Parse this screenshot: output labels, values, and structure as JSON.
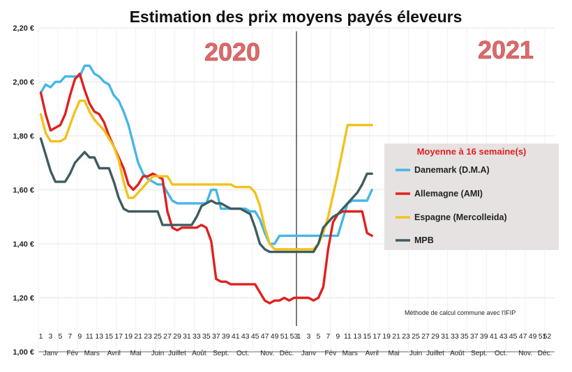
{
  "chart_data": {
    "type": "line",
    "title": "Estimation des prix moyens payés éleveurs",
    "year_labels": [
      "2020",
      "2021"
    ],
    "legend_title": "Moyenne à  16 semaine(s)",
    "note": "Méthode de calcul commune avec l'IFIP",
    "ylim": [
      1.0,
      2.2
    ],
    "yticks": [
      "1,00 €",
      "1,20 €",
      "1,40 €",
      "1,60 €",
      "1,80 €",
      "2,00 €",
      "2,20 €"
    ],
    "ytick_values": [
      1.0,
      1.2,
      1.4,
      1.6,
      1.8,
      2.0,
      2.2
    ],
    "week_ticks_2020": [
      "1",
      "3",
      "5",
      "7",
      "9",
      "11",
      "13",
      "15",
      "17",
      "19",
      "21",
      "23",
      "25",
      "27",
      "29",
      "31",
      "33",
      "35",
      "37",
      "39",
      "41",
      "43",
      "45",
      "47",
      "49",
      "51",
      "53"
    ],
    "week_ticks_2021": [
      "1",
      "3",
      "5",
      "7",
      "9",
      "11",
      "13",
      "15",
      "17",
      "19",
      "21",
      "23",
      "25",
      "27",
      "29",
      "31",
      "33",
      "35",
      "37",
      "39",
      "41",
      "43",
      "45",
      "47",
      "49",
      "51",
      "52"
    ],
    "months": [
      "Janv",
      "Fév",
      "Mars",
      "Avril",
      "Mai",
      "Juin",
      "Juillet",
      "Août",
      "Sept.",
      "Oct.",
      "Nov.",
      "Déc."
    ],
    "month_weeks": [
      3,
      7.5,
      11.5,
      16,
      20.5,
      25,
      29,
      33.5,
      38,
      42.5,
      47.5,
      51.5
    ],
    "x_total": 106,
    "divider_x": 53,
    "series": [
      {
        "name": "Danemark (D.M.A)",
        "color": "#45b6e6",
        "x": [
          1,
          2,
          3,
          4,
          5,
          6,
          7,
          8,
          9,
          10,
          11,
          12,
          13,
          14,
          15,
          16,
          17,
          18,
          19,
          20,
          21,
          22,
          23,
          24,
          25,
          26,
          27,
          28,
          29,
          30,
          31,
          32,
          33,
          34,
          35,
          36,
          37,
          38,
          39,
          40,
          41,
          42,
          43,
          44,
          45,
          46,
          47,
          48,
          49,
          50,
          51,
          52,
          53,
          54,
          55,
          56,
          57,
          58,
          59,
          60,
          61,
          62,
          63,
          64,
          65,
          66,
          67,
          68,
          69
        ],
        "values": [
          1.96,
          1.99,
          1.98,
          2.0,
          2.0,
          2.02,
          2.02,
          2.02,
          2.02,
          2.06,
          2.06,
          2.03,
          2.02,
          2.0,
          1.99,
          1.95,
          1.93,
          1.89,
          1.84,
          1.77,
          1.7,
          1.66,
          1.64,
          1.63,
          1.62,
          1.62,
          1.59,
          1.56,
          1.55,
          1.55,
          1.55,
          1.55,
          1.55,
          1.55,
          1.55,
          1.6,
          1.6,
          1.53,
          1.53,
          1.53,
          1.53,
          1.53,
          1.53,
          1.52,
          1.52,
          1.49,
          1.44,
          1.4,
          1.4,
          1.43,
          1.43,
          1.43,
          1.43,
          1.43,
          1.43,
          1.43,
          1.43,
          1.43,
          1.43,
          1.43,
          1.43,
          1.43,
          1.49,
          1.55,
          1.56,
          1.56,
          1.56,
          1.56,
          1.6
        ]
      },
      {
        "name": "Allemagne (AMI)",
        "color": "#e02020",
        "x": [
          1,
          2,
          3,
          4,
          5,
          6,
          7,
          8,
          9,
          10,
          11,
          12,
          13,
          14,
          15,
          16,
          17,
          18,
          19,
          20,
          21,
          22,
          23,
          24,
          25,
          26,
          27,
          28,
          29,
          30,
          31,
          32,
          33,
          34,
          35,
          36,
          37,
          38,
          39,
          40,
          41,
          42,
          43,
          44,
          45,
          46,
          47,
          48,
          49,
          50,
          51,
          52,
          53,
          54,
          55,
          56,
          57,
          58,
          59,
          60,
          61,
          62,
          63,
          64,
          65,
          66,
          67,
          68,
          69
        ],
        "values": [
          1.96,
          1.88,
          1.82,
          1.83,
          1.84,
          1.88,
          1.95,
          2.01,
          2.03,
          1.97,
          1.92,
          1.89,
          1.88,
          1.85,
          1.8,
          1.76,
          1.72,
          1.68,
          1.62,
          1.6,
          1.62,
          1.65,
          1.65,
          1.66,
          1.65,
          1.64,
          1.52,
          1.46,
          1.45,
          1.46,
          1.46,
          1.46,
          1.46,
          1.47,
          1.46,
          1.41,
          1.27,
          1.26,
          1.26,
          1.25,
          1.25,
          1.25,
          1.25,
          1.25,
          1.25,
          1.22,
          1.19,
          1.18,
          1.19,
          1.19,
          1.2,
          1.19,
          1.2,
          1.2,
          1.2,
          1.2,
          1.19,
          1.2,
          1.24,
          1.38,
          1.48,
          1.51,
          1.52,
          1.52,
          1.52,
          1.52,
          1.52,
          1.44,
          1.43
        ]
      },
      {
        "name": "Espagne (Mercolleida)",
        "color": "#f2c21b",
        "x": [
          1,
          2,
          3,
          4,
          5,
          6,
          7,
          8,
          9,
          10,
          11,
          12,
          13,
          14,
          15,
          16,
          17,
          18,
          19,
          20,
          21,
          22,
          23,
          24,
          25,
          26,
          27,
          28,
          29,
          30,
          31,
          32,
          33,
          34,
          35,
          36,
          37,
          38,
          39,
          40,
          41,
          42,
          43,
          44,
          45,
          46,
          47,
          48,
          49,
          50,
          51,
          52,
          53,
          54,
          55,
          56,
          57,
          58,
          59,
          60,
          61,
          62,
          63,
          64,
          65,
          66,
          67,
          68,
          69
        ],
        "values": [
          1.88,
          1.81,
          1.78,
          1.78,
          1.78,
          1.79,
          1.84,
          1.89,
          1.93,
          1.93,
          1.89,
          1.86,
          1.84,
          1.82,
          1.79,
          1.76,
          1.71,
          1.63,
          1.57,
          1.57,
          1.59,
          1.61,
          1.63,
          1.65,
          1.65,
          1.65,
          1.65,
          1.62,
          1.62,
          1.62,
          1.62,
          1.62,
          1.62,
          1.62,
          1.62,
          1.62,
          1.62,
          1.62,
          1.62,
          1.62,
          1.61,
          1.61,
          1.61,
          1.61,
          1.59,
          1.54,
          1.46,
          1.4,
          1.38,
          1.38,
          1.38,
          1.38,
          1.38,
          1.38,
          1.38,
          1.38,
          1.38,
          1.4,
          1.44,
          1.5,
          1.58,
          1.66,
          1.75,
          1.84,
          1.84,
          1.84,
          1.84,
          1.84,
          1.84
        ]
      },
      {
        "name": "MPB",
        "color": "#3f5c60",
        "x": [
          1,
          2,
          3,
          4,
          5,
          6,
          7,
          8,
          9,
          10,
          11,
          12,
          13,
          14,
          15,
          16,
          17,
          18,
          19,
          20,
          21,
          22,
          23,
          24,
          25,
          26,
          27,
          28,
          29,
          30,
          31,
          32,
          33,
          34,
          35,
          36,
          37,
          38,
          39,
          40,
          41,
          42,
          43,
          44,
          45,
          46,
          47,
          48,
          49,
          50,
          51,
          52,
          53,
          54,
          55,
          56,
          57,
          58,
          59,
          60,
          61,
          62,
          63,
          64,
          65,
          66,
          67,
          68,
          69
        ],
        "values": [
          1.79,
          1.73,
          1.67,
          1.63,
          1.63,
          1.63,
          1.66,
          1.7,
          1.72,
          1.74,
          1.72,
          1.72,
          1.68,
          1.68,
          1.68,
          1.63,
          1.57,
          1.53,
          1.52,
          1.52,
          1.52,
          1.52,
          1.52,
          1.52,
          1.52,
          1.47,
          1.47,
          1.47,
          1.47,
          1.47,
          1.47,
          1.47,
          1.5,
          1.54,
          1.55,
          1.56,
          1.55,
          1.55,
          1.54,
          1.53,
          1.53,
          1.53,
          1.52,
          1.51,
          1.46,
          1.4,
          1.38,
          1.37,
          1.37,
          1.37,
          1.37,
          1.37,
          1.37,
          1.37,
          1.37,
          1.37,
          1.37,
          1.4,
          1.46,
          1.48,
          1.5,
          1.51,
          1.53,
          1.55,
          1.57,
          1.59,
          1.62,
          1.66,
          1.66
        ]
      }
    ]
  }
}
